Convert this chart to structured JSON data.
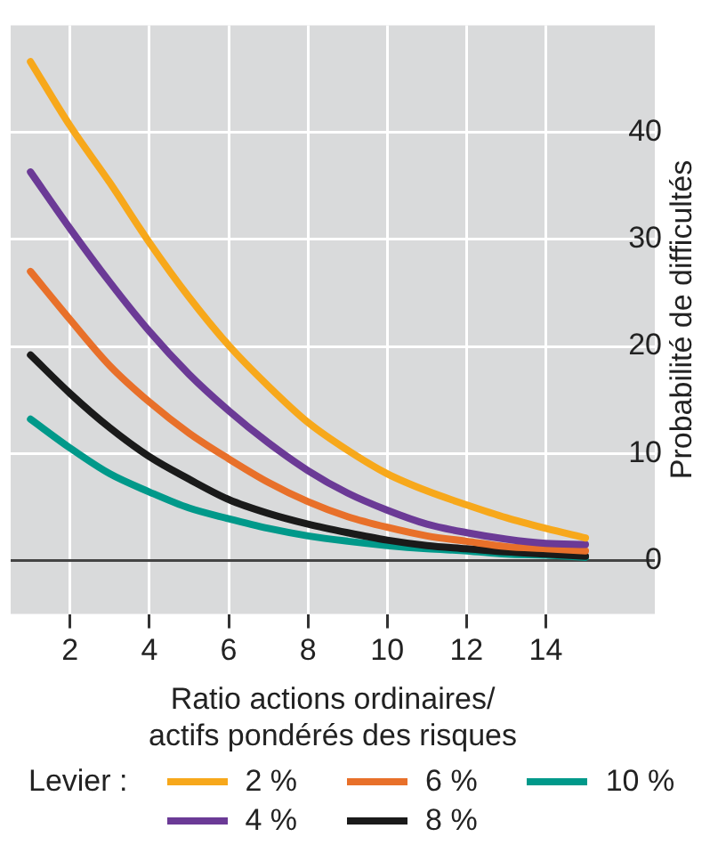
{
  "chart_data": {
    "type": "line",
    "xlabel": "Ratio actions ordinaires/\nactifs pondérés des risques",
    "ylabel": "Probabilité de difficultés",
    "legend_title": "Levier :",
    "x": [
      1,
      2,
      3,
      4,
      5,
      6,
      7,
      8,
      9,
      10,
      11,
      12,
      13,
      14,
      15
    ],
    "series": [
      {
        "name": "2 %",
        "color": "#f7a81b",
        "values": [
          46.6,
          40.6,
          35.3,
          29.7,
          24.6,
          20.1,
          16.3,
          12.9,
          10.3,
          8.1,
          6.5,
          5.2,
          4.0,
          3.0,
          2.1
        ]
      },
      {
        "name": "4 %",
        "color": "#6b3a96",
        "values": [
          36.3,
          31.0,
          26.0,
          21.4,
          17.4,
          14.0,
          11.0,
          8.4,
          6.3,
          4.7,
          3.4,
          2.6,
          2.0,
          1.6,
          1.5
        ]
      },
      {
        "name": "6 %",
        "color": "#e8702a",
        "values": [
          27.0,
          22.5,
          18.2,
          14.8,
          11.9,
          9.5,
          7.3,
          5.5,
          4.1,
          3.1,
          2.3,
          1.8,
          1.3,
          1.1,
          0.9
        ]
      },
      {
        "name": "8 %",
        "color": "#1a1a1a",
        "values": [
          19.2,
          15.6,
          12.4,
          9.7,
          7.6,
          5.7,
          4.4,
          3.4,
          2.6,
          1.9,
          1.4,
          1.1,
          0.8,
          0.6,
          0.4
        ]
      },
      {
        "name": "10 %",
        "color": "#00998a",
        "values": [
          13.2,
          10.5,
          8.1,
          6.4,
          4.9,
          3.9,
          3.0,
          2.3,
          1.8,
          1.4,
          1.1,
          0.9,
          0.6,
          0.5,
          0.3
        ]
      }
    ],
    "xlim": [
      0.5,
      16.75
    ],
    "xticks": [
      2,
      4,
      6,
      8,
      10,
      12,
      14
    ],
    "ylim": [
      -5,
      50
    ],
    "yticks": [
      0,
      10,
      20,
      30,
      40
    ],
    "grid": true,
    "legend": "bottom",
    "marker": "none",
    "line_style": "solid"
  }
}
